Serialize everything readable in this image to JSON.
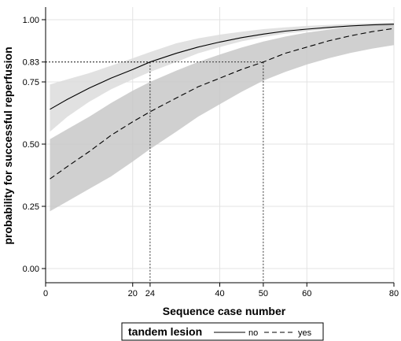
{
  "chart_data": {
    "type": "line",
    "xlabel": "Sequence case number",
    "ylabel": "probability for successful reperfusion",
    "xlim": [
      0,
      80
    ],
    "ylim": [
      0,
      1
    ],
    "x_ticks": [
      {
        "value": 0,
        "label": "0"
      },
      {
        "value": 20,
        "label": "20"
      },
      {
        "value": 24,
        "label": "24"
      },
      {
        "value": 40,
        "label": "40"
      },
      {
        "value": 50,
        "label": "50"
      },
      {
        "value": 60,
        "label": "60"
      },
      {
        "value": 80,
        "label": "80"
      }
    ],
    "y_ticks": [
      {
        "value": 0,
        "label": "0.00"
      },
      {
        "value": 0.25,
        "label": "0.25"
      },
      {
        "value": 0.5,
        "label": "0.50"
      },
      {
        "value": 0.75,
        "label": "0.75"
      },
      {
        "value": 0.83,
        "label": "0.83"
      },
      {
        "value": 1,
        "label": "1.00"
      }
    ],
    "grid": true,
    "legend": {
      "title": "tandem lesion",
      "placement": "bottom",
      "entries": [
        {
          "label": "no",
          "style": "solid"
        },
        {
          "label": "yes",
          "style": "dashed"
        }
      ]
    },
    "x": [
      1,
      5,
      10,
      15,
      20,
      24,
      30,
      35,
      40,
      45,
      50,
      55,
      60,
      65,
      70,
      75,
      80
    ],
    "series": [
      {
        "name": "no",
        "style": "solid",
        "band_color": "#dcdcdc",
        "values": [
          0.64,
          0.68,
          0.725,
          0.765,
          0.8,
          0.83,
          0.865,
          0.89,
          0.91,
          0.928,
          0.942,
          0.954,
          0.962,
          0.969,
          0.975,
          0.979,
          0.982
        ],
        "lower": [
          0.55,
          0.61,
          0.67,
          0.72,
          0.76,
          0.79,
          0.83,
          0.865,
          0.89,
          0.913,
          0.93,
          0.944,
          0.954,
          0.962,
          0.968,
          0.972,
          0.975
        ],
        "upper": [
          0.74,
          0.76,
          0.785,
          0.815,
          0.845,
          0.87,
          0.905,
          0.925,
          0.94,
          0.952,
          0.962,
          0.969,
          0.975,
          0.979,
          0.983,
          0.986,
          0.988
        ]
      },
      {
        "name": "yes",
        "style": "dashed",
        "band_color": "#c8c8c8",
        "values": [
          0.36,
          0.41,
          0.47,
          0.535,
          0.59,
          0.63,
          0.685,
          0.73,
          0.765,
          0.8,
          0.83,
          0.865,
          0.89,
          0.915,
          0.935,
          0.952,
          0.965
        ],
        "lower": [
          0.23,
          0.27,
          0.32,
          0.37,
          0.43,
          0.48,
          0.55,
          0.61,
          0.66,
          0.71,
          0.755,
          0.79,
          0.82,
          0.845,
          0.866,
          0.884,
          0.898
        ],
        "upper": [
          0.52,
          0.56,
          0.61,
          0.665,
          0.715,
          0.75,
          0.795,
          0.83,
          0.86,
          0.888,
          0.912,
          0.932,
          0.948,
          0.96,
          0.97,
          0.977,
          0.982
        ]
      }
    ],
    "reference_lines": [
      {
        "x": 24,
        "y": 0.83,
        "series": "no"
      },
      {
        "x": 50,
        "y": 0.83,
        "series": "yes"
      }
    ]
  }
}
